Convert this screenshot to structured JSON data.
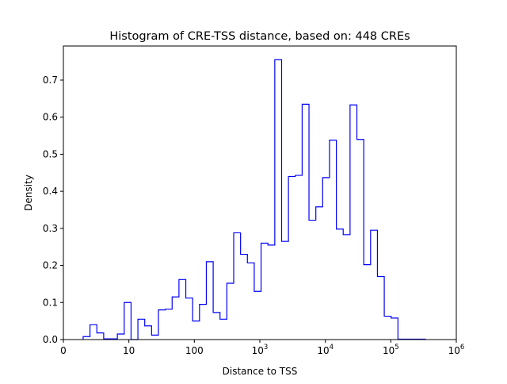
{
  "chart_data": {
    "type": "histogram-step",
    "title": "Histogram of CRE-TSS distance, based on: 448 CREs",
    "xlabel": "Distance to TSS",
    "ylabel": "Density",
    "xscale": "log",
    "xlim_log10": [
      0,
      6
    ],
    "ylim": [
      0,
      0.792
    ],
    "x_ticks": [
      {
        "log10": 0,
        "label": "0"
      },
      {
        "log10": 1,
        "label": "10"
      },
      {
        "log10": 2,
        "label": "100"
      },
      {
        "log10": 3,
        "label": "10",
        "exp": "3"
      },
      {
        "log10": 4,
        "label": "10",
        "exp": "4"
      },
      {
        "log10": 5,
        "label": "10",
        "exp": "5"
      },
      {
        "log10": 6,
        "label": "10",
        "exp": "6"
      }
    ],
    "y_ticks": [
      "0.0",
      "0.1",
      "0.2",
      "0.3",
      "0.4",
      "0.5",
      "0.6",
      "0.7"
    ],
    "bin_start_log10": 0.302,
    "bin_width_log10": 0.1045,
    "density": [
      0.008,
      0.04,
      0.018,
      0.002,
      0.002,
      0.015,
      0.1,
      0,
      0.055,
      0.037,
      0.012,
      0.08,
      0.082,
      0.115,
      0.162,
      0.112,
      0.05,
      0.095,
      0.21,
      0.073,
      0.055,
      0.152,
      0.288,
      0.23,
      0.207,
      0.13,
      0.26,
      0.255,
      0.755,
      0.265,
      0.44,
      0.443,
      0.635,
      0.322,
      0.358,
      0.437,
      0.538,
      0.298,
      0.283,
      0.633,
      0.54,
      0.202,
      0.295,
      0.17,
      0.063,
      0.058,
      0.001,
      0.001,
      0.001,
      0.001
    ],
    "color": "#0000ff",
    "grid": false
  }
}
